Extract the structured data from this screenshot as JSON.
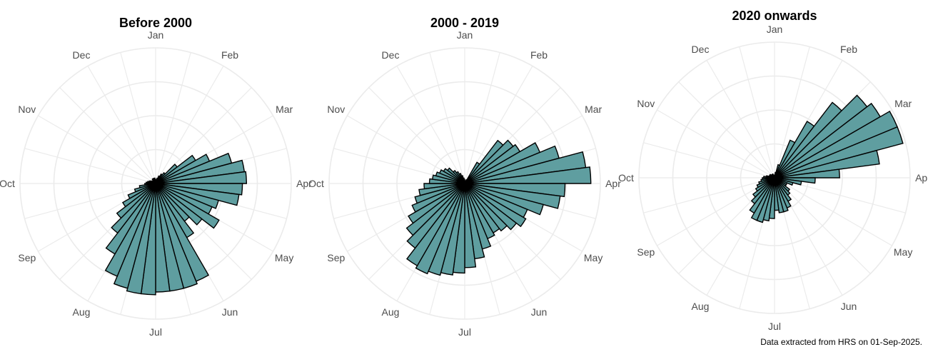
{
  "colors": {
    "bar_fill": "#5f9ea0",
    "bar_stroke": "#000000",
    "grid": "#ebebeb"
  },
  "caption": "Data extracted from HRS on 01-Sep-2025.",
  "chart_data": [
    {
      "type": "polar-bar",
      "title": "Before 2000",
      "month_labels": [
        "Jan",
        "Feb",
        "Mar",
        "Apr",
        "May",
        "Jun",
        "Jul",
        "Aug",
        "Sep",
        "Oct",
        "Nov",
        "Dec"
      ],
      "bins_per_month": 4,
      "values": [
        0.02,
        0.03,
        0.04,
        0.06,
        0.08,
        0.1,
        0.2,
        0.34,
        0.43,
        0.58,
        0.66,
        0.67,
        0.64,
        0.62,
        0.48,
        0.45,
        0.54,
        0.43,
        0.35,
        0.46,
        0.78,
        0.8,
        0.8,
        0.8,
        0.82,
        0.82,
        0.8,
        0.74,
        0.6,
        0.46,
        0.36,
        0.28,
        0.22,
        0.16,
        0.12,
        0.08,
        0.07,
        0.06,
        0.05,
        0.04,
        0.03,
        0.02,
        0.03,
        0.04,
        0.04,
        0.04,
        0.04,
        0.03
      ],
      "rmax": 1.0,
      "grid_rings": 4
    },
    {
      "type": "polar-bar",
      "title": "2000 - 2019",
      "month_labels": [
        "Jan",
        "Feb",
        "Mar",
        "Apr",
        "May",
        "Jun",
        "Jul",
        "Aug",
        "Sep",
        "Oct",
        "Nov",
        "Dec"
      ],
      "bins_per_month": 4,
      "values": [
        0.02,
        0.02,
        0.02,
        0.03,
        0.18,
        0.4,
        0.45,
        0.47,
        0.6,
        0.72,
        0.9,
        0.93,
        0.74,
        0.71,
        0.6,
        0.5,
        0.52,
        0.48,
        0.44,
        0.42,
        0.44,
        0.5,
        0.56,
        0.62,
        0.66,
        0.68,
        0.7,
        0.72,
        0.7,
        0.6,
        0.54,
        0.48,
        0.42,
        0.38,
        0.34,
        0.3,
        0.26,
        0.24,
        0.22,
        0.2,
        0.18,
        0.16,
        0.12,
        0.1,
        0.08,
        0.06,
        0.04,
        0.03
      ],
      "rmax": 1.0,
      "grid_rings": 4
    },
    {
      "type": "polar-bar",
      "title": "2020 onwards",
      "month_labels": [
        "Jan",
        "Feb",
        "Mar",
        "Apr",
        "May",
        "Jun",
        "Jul",
        "Aug",
        "Sep",
        "Oct",
        "Nov",
        "Dec"
      ],
      "bins_per_month": 4,
      "values": [
        0.02,
        0.04,
        0.1,
        0.3,
        0.48,
        0.7,
        0.86,
        0.9,
        0.98,
        0.98,
        0.78,
        0.48,
        0.3,
        0.2,
        0.14,
        0.1,
        0.1,
        0.14,
        0.16,
        0.2,
        0.24,
        0.26,
        0.26,
        0.24,
        0.3,
        0.32,
        0.34,
        0.34,
        0.3,
        0.24,
        0.2,
        0.16,
        0.14,
        0.12,
        0.1,
        0.09,
        0.08,
        0.06,
        0.04,
        0.04,
        0.04,
        0.03,
        0.03,
        0.03,
        0.03,
        0.02,
        0.02,
        0.02
      ],
      "rmax": 1.0,
      "grid_rings": 4
    }
  ]
}
